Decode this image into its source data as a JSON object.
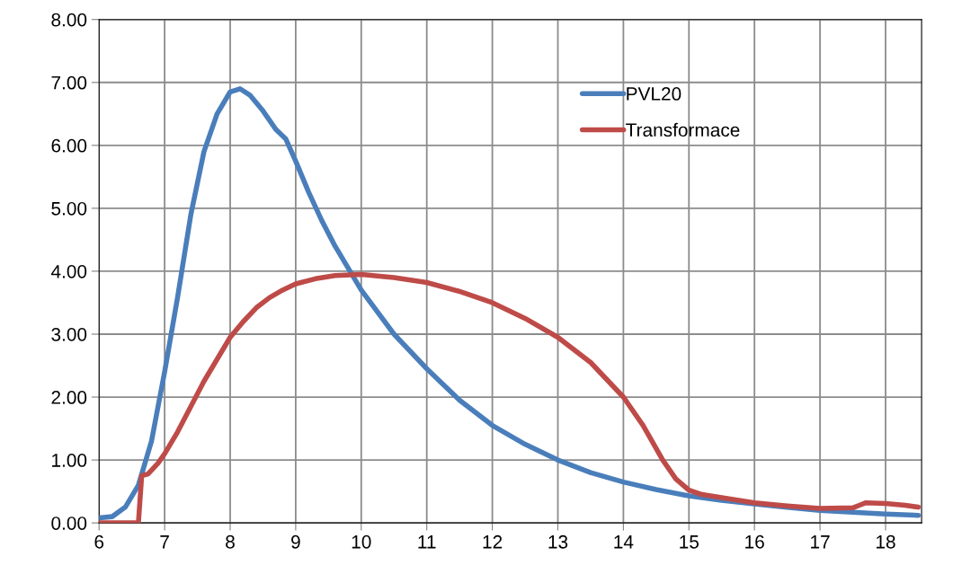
{
  "chart_data": {
    "type": "line",
    "xlim": [
      6,
      18.55
    ],
    "ylim": [
      0,
      8
    ],
    "xticks": [
      6,
      7,
      8,
      9,
      10,
      11,
      12,
      13,
      14,
      15,
      16,
      17,
      18
    ],
    "yticks": [
      {
        "value": 0,
        "label": "0.00"
      },
      {
        "value": 1,
        "label": "1.00"
      },
      {
        "value": 2,
        "label": "2.00"
      },
      {
        "value": 3,
        "label": "3.00"
      },
      {
        "value": 4,
        "label": "4.00"
      },
      {
        "value": 5,
        "label": "5.00"
      },
      {
        "value": 6,
        "label": "6.00"
      },
      {
        "value": 7,
        "label": "7.00"
      },
      {
        "value": 8,
        "label": "8.00"
      }
    ],
    "grid": true,
    "legend": "top right",
    "marker": "none",
    "line_style": "solid",
    "series": [
      {
        "name": "PVL20",
        "color": "#4a7ebb",
        "x": [
          6,
          6.2,
          6.4,
          6.6,
          6.8,
          7,
          7.2,
          7.4,
          7.6,
          7.8,
          8,
          8.15,
          8.3,
          8.5,
          8.7,
          8.85,
          9,
          9.2,
          9.4,
          9.6,
          9.8,
          10,
          10.5,
          11,
          11.5,
          12,
          12.5,
          13,
          13.5,
          14,
          14.5,
          15,
          15.5,
          16,
          16.5,
          17,
          17.5,
          18,
          18.5
        ],
        "values": [
          0.08,
          0.1,
          0.25,
          0.6,
          1.3,
          2.4,
          3.6,
          4.9,
          5.9,
          6.5,
          6.85,
          6.9,
          6.8,
          6.55,
          6.25,
          6.1,
          5.75,
          5.25,
          4.8,
          4.4,
          4.05,
          3.7,
          3.0,
          2.45,
          1.95,
          1.55,
          1.25,
          1.0,
          0.8,
          0.65,
          0.53,
          0.43,
          0.36,
          0.3,
          0.25,
          0.2,
          0.17,
          0.14,
          0.12
        ]
      },
      {
        "name": "Transformace",
        "color": "#be4b48",
        "x": [
          6,
          6.6,
          6.65,
          6.75,
          6.9,
          7,
          7.2,
          7.4,
          7.6,
          7.8,
          8,
          8.2,
          8.4,
          8.6,
          8.8,
          9,
          9.3,
          9.6,
          10,
          10.5,
          11,
          11.5,
          12,
          12.5,
          13,
          13.5,
          14,
          14.3,
          14.6,
          14.8,
          15,
          15.2,
          15.5,
          16,
          16.5,
          17,
          17.5,
          17.6,
          17.7,
          18,
          18.3,
          18.5
        ],
        "values": [
          0,
          0,
          0.75,
          0.78,
          0.95,
          1.1,
          1.45,
          1.85,
          2.25,
          2.6,
          2.95,
          3.2,
          3.42,
          3.58,
          3.7,
          3.8,
          3.88,
          3.93,
          3.95,
          3.9,
          3.82,
          3.68,
          3.5,
          3.25,
          2.95,
          2.55,
          2.0,
          1.55,
          1.0,
          0.7,
          0.52,
          0.45,
          0.4,
          0.32,
          0.27,
          0.23,
          0.24,
          0.28,
          0.32,
          0.31,
          0.28,
          0.25
        ]
      }
    ]
  }
}
